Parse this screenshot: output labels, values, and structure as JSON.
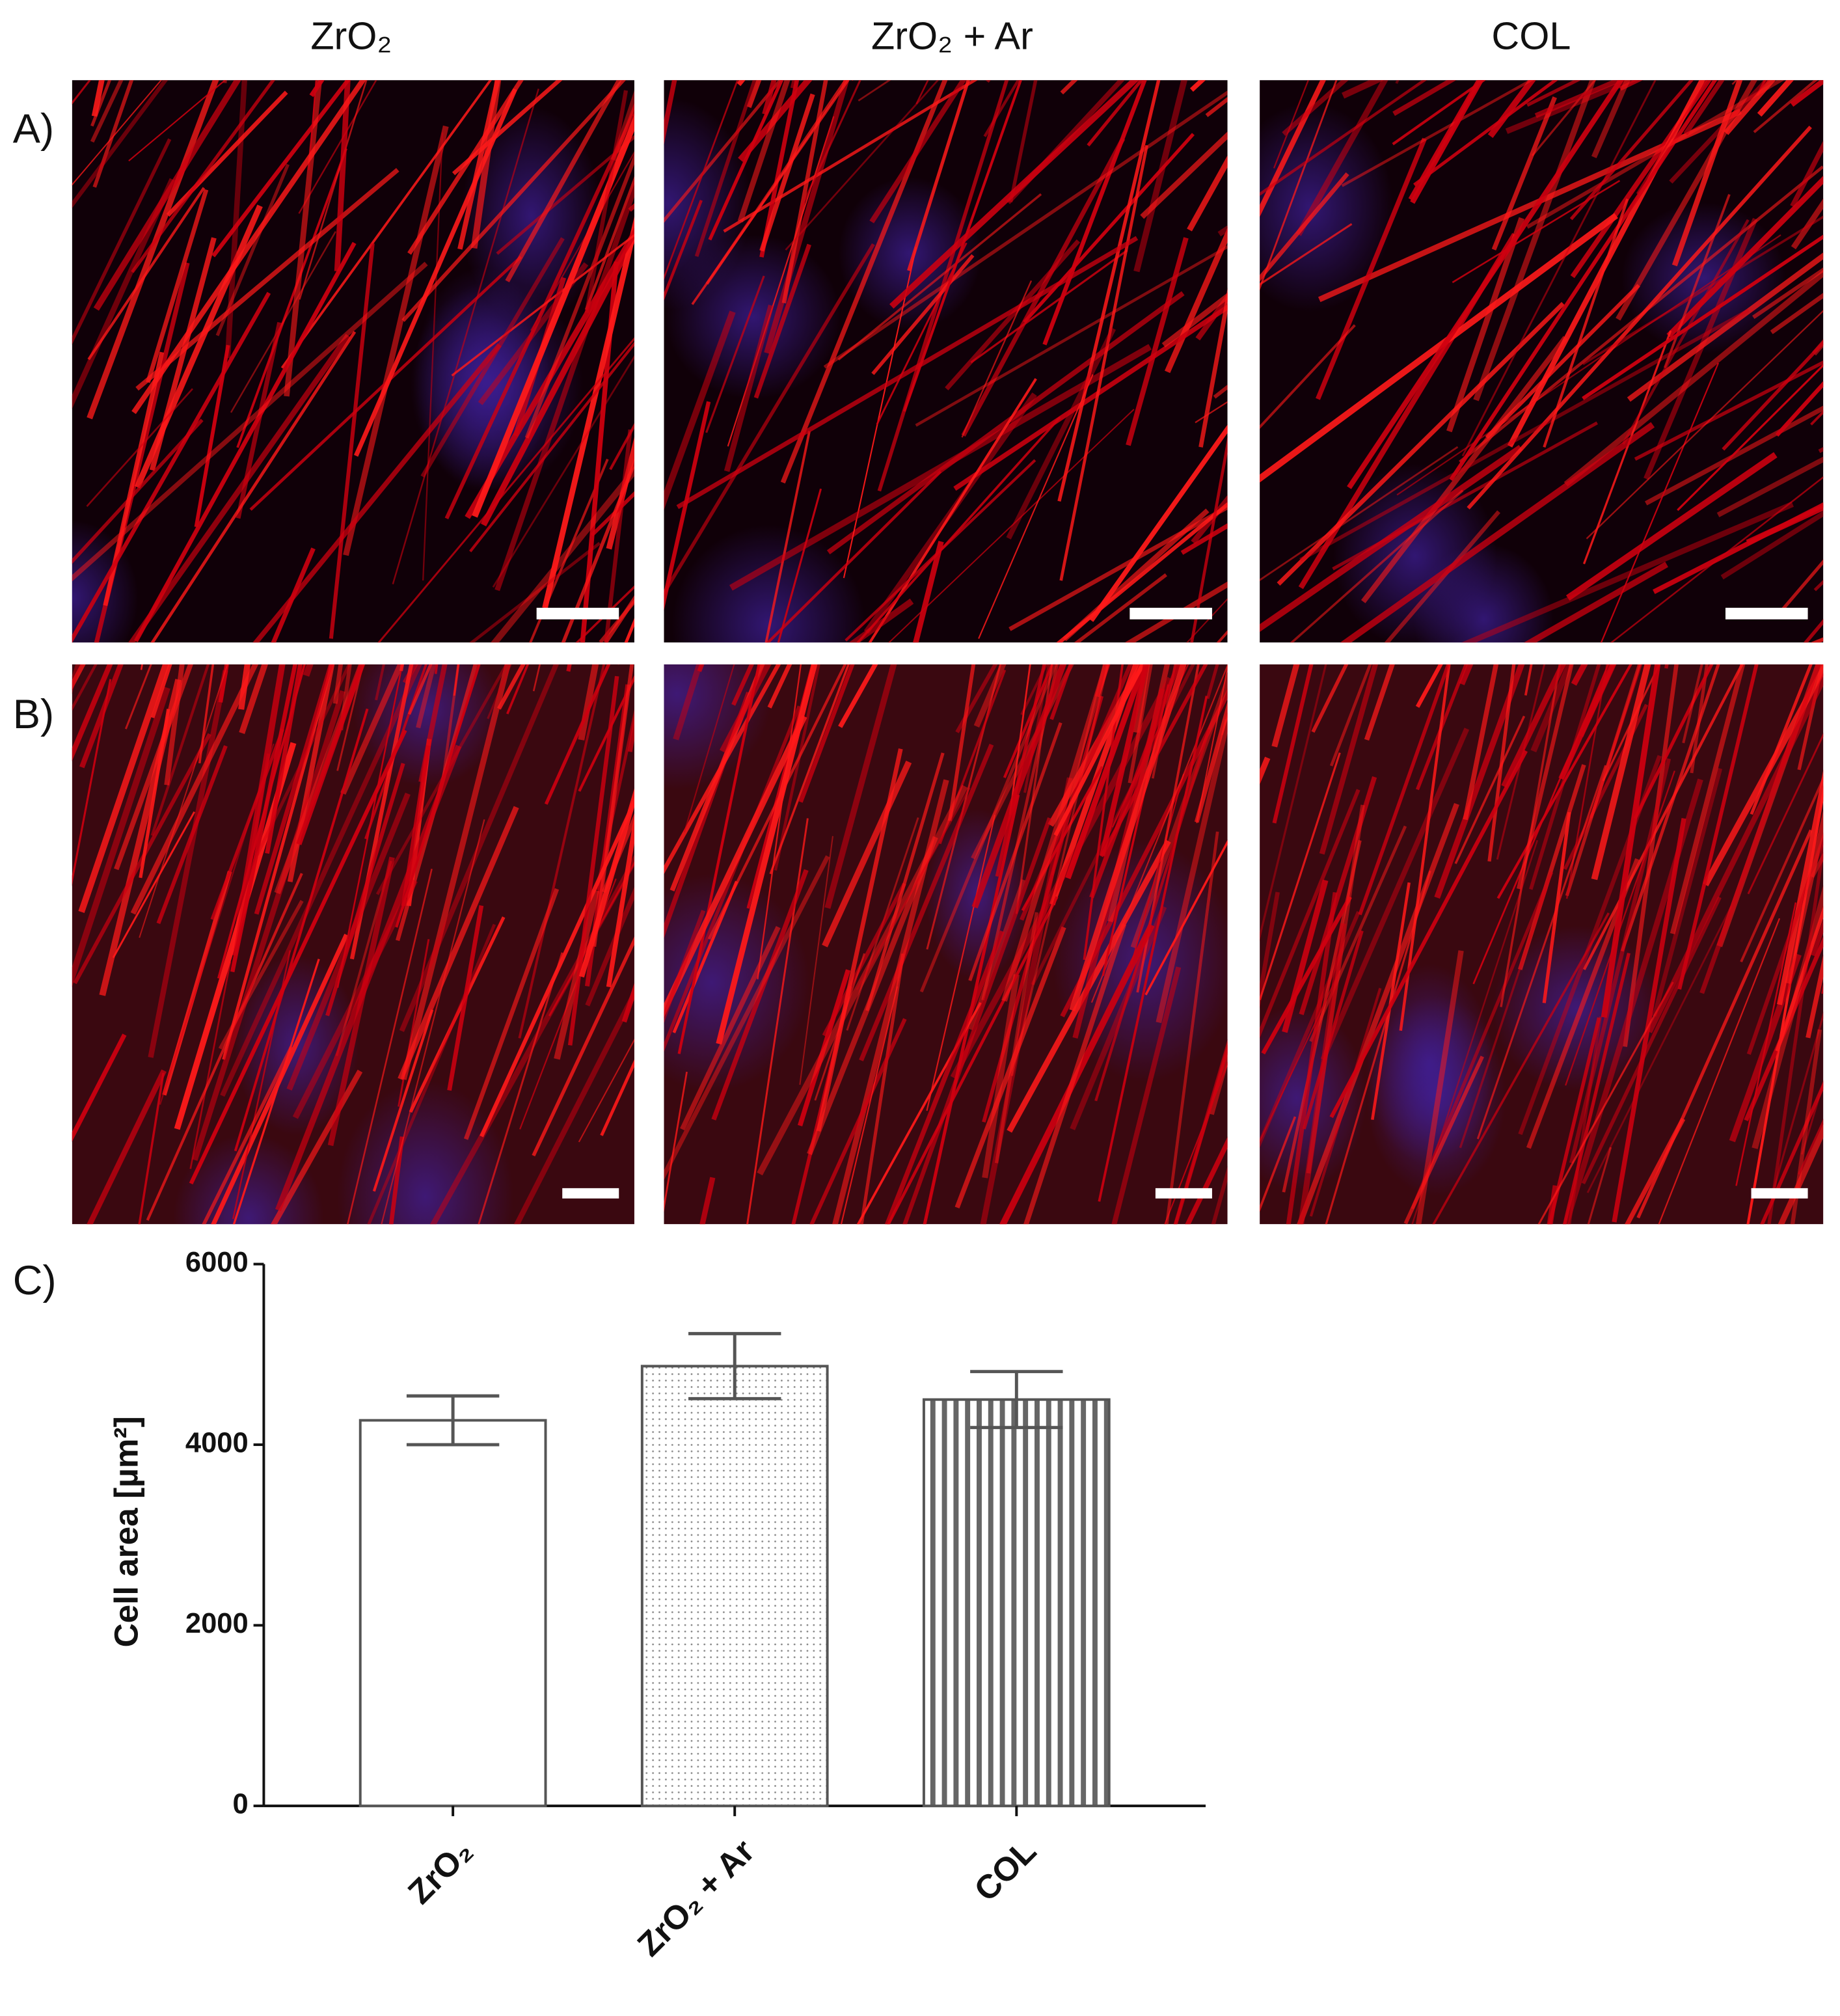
{
  "panel_labels": [
    "A)",
    "B)",
    "C)"
  ],
  "columns": [
    "ZrO₂",
    "ZrO₂ + Ar",
    "COL"
  ],
  "chart_data": {
    "type": "bar",
    "y_label": "Cell area [µm²]",
    "categories": [
      "ZrO₂",
      "ZrO₂ + Ar",
      "COL"
    ],
    "values": [
      4270,
      4870,
      4500
    ],
    "errors": [
      270,
      360,
      310
    ],
    "color": "#ffffff",
    "patterns": [
      "none",
      "dots",
      "vertical-lines"
    ],
    "ylim": [
      0,
      6000
    ],
    "yticks": [
      0,
      2000,
      4000,
      6000
    ],
    "grid": false
  }
}
